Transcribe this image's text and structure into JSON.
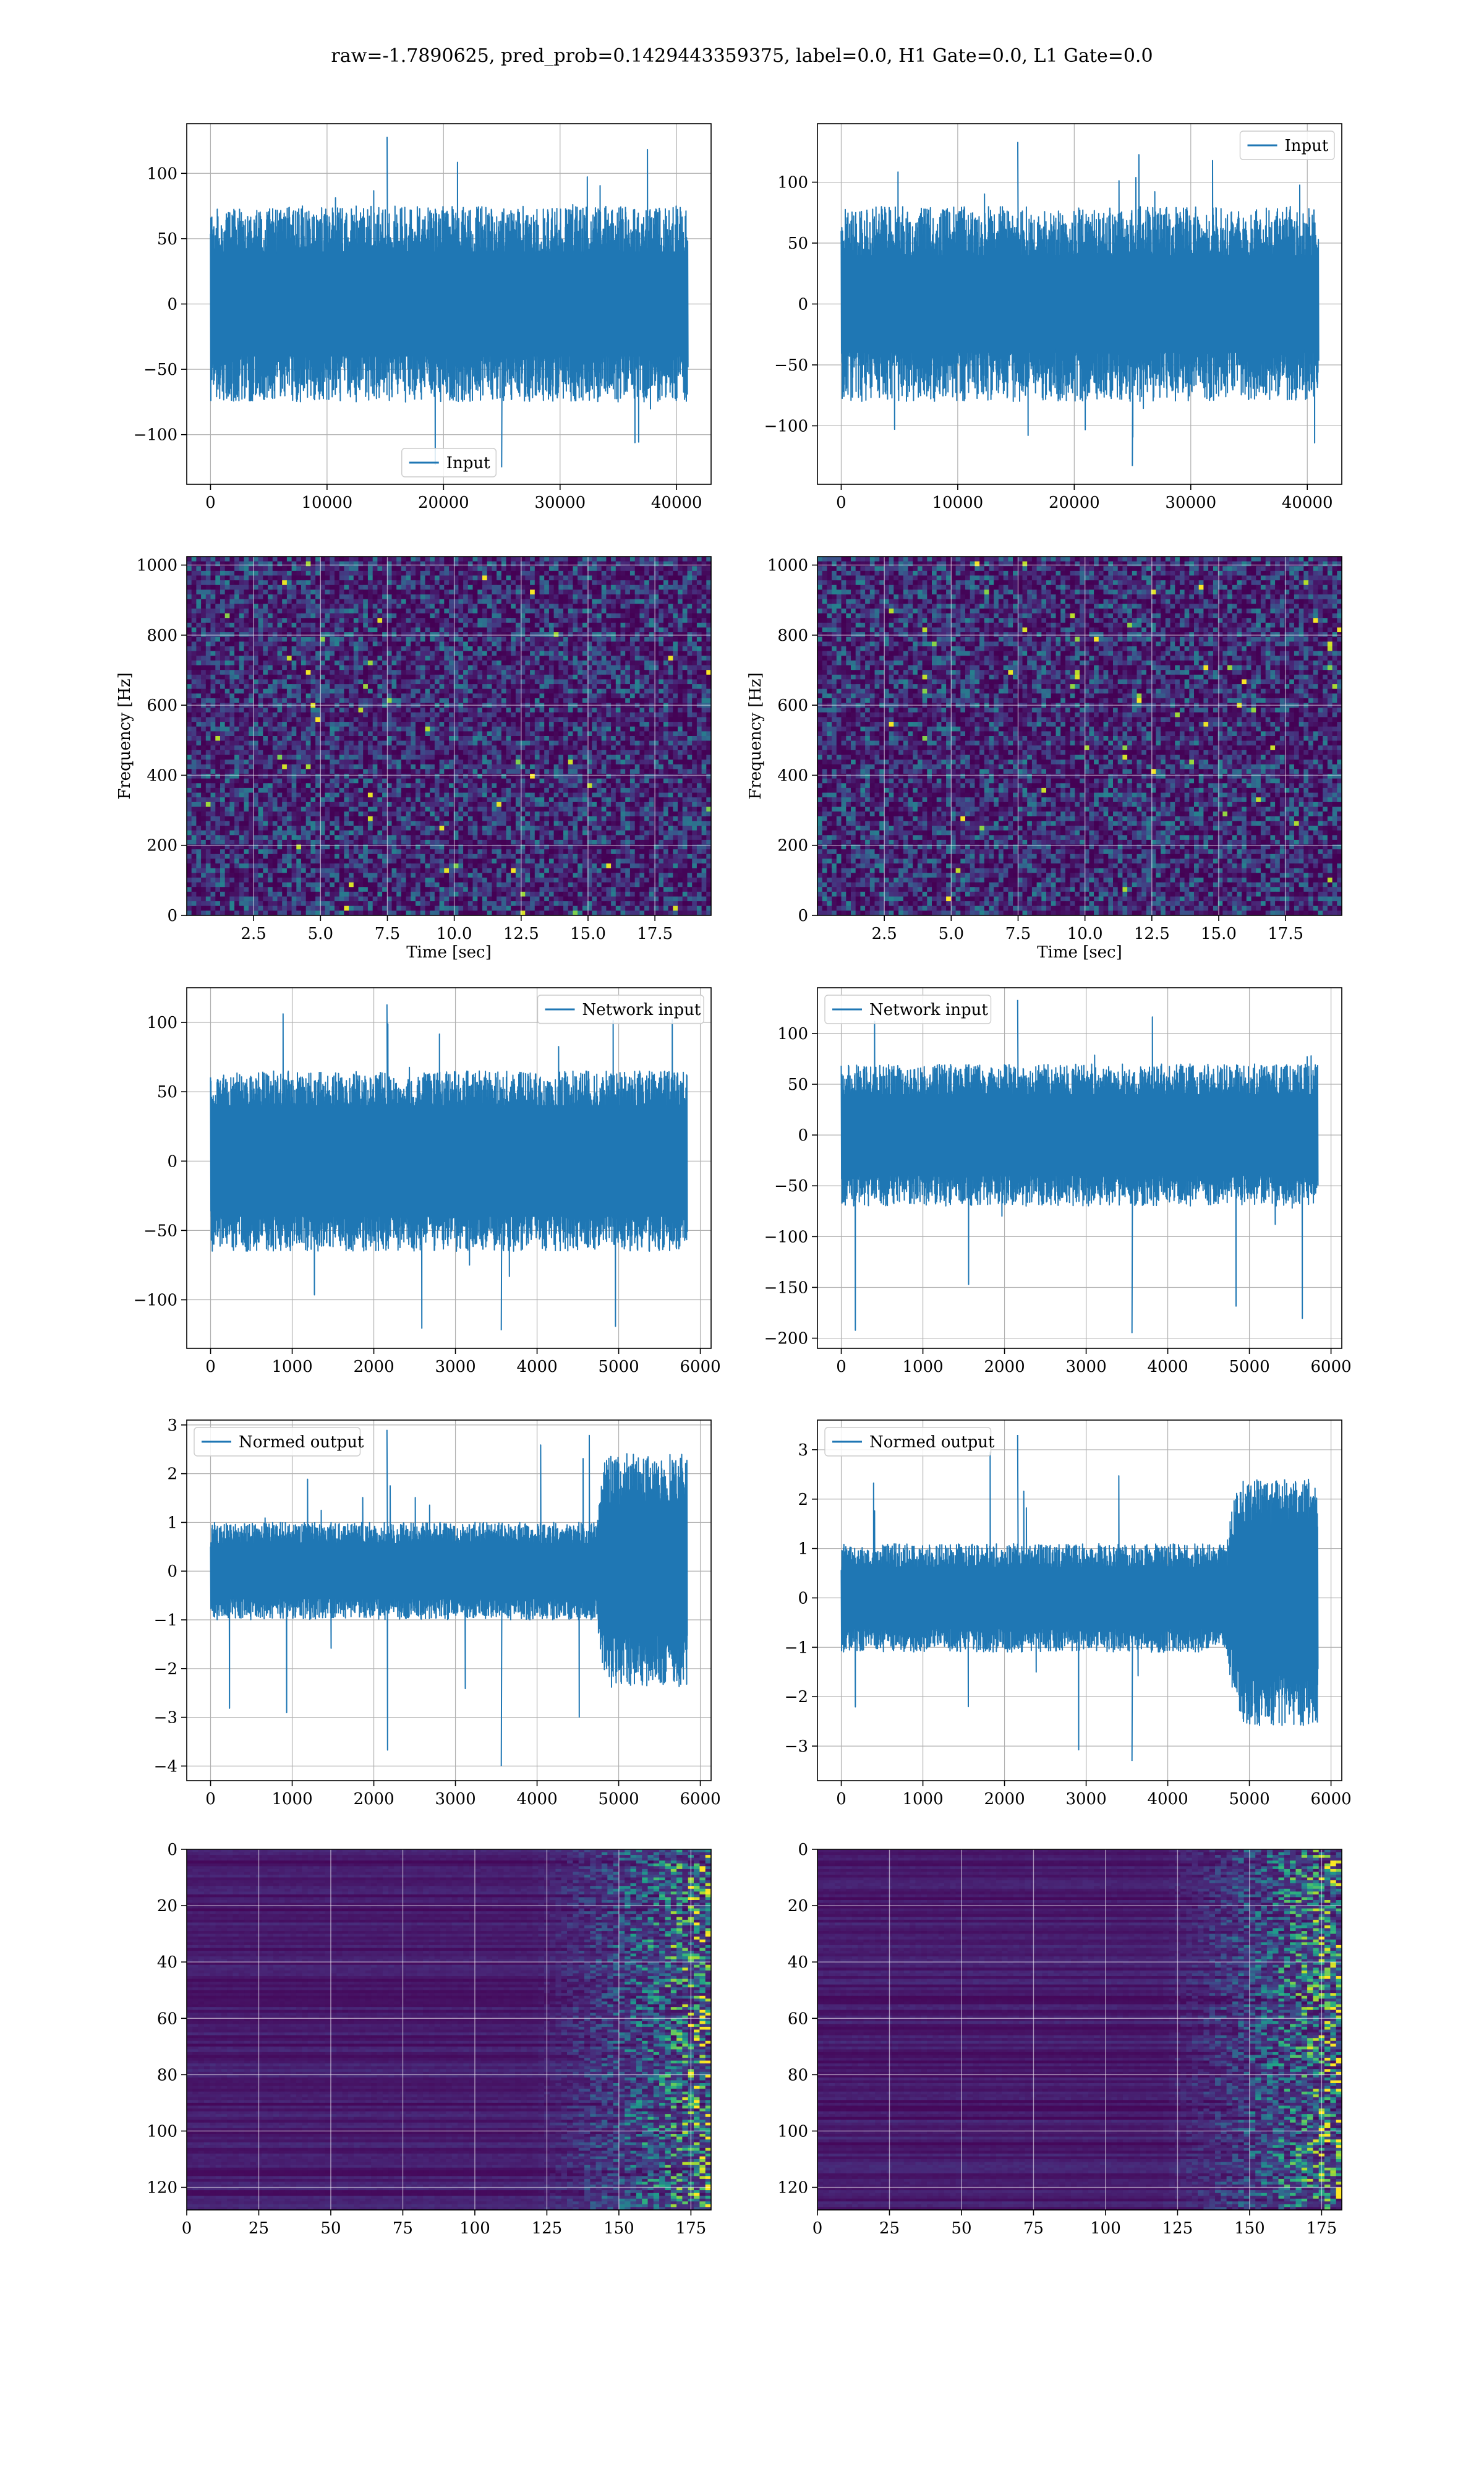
{
  "figure": {
    "suptitle": "raw=-1.7890625, pred_prob=0.1429443359375, label=0.0, H1 Gate=0.0, L1 Gate=0.0",
    "colors": {
      "line": "#1f77b4",
      "grid": "#b0b0b0",
      "axes": "#000000"
    }
  },
  "chart_data": [
    {
      "id": "input-h1",
      "type": "line",
      "row": 0,
      "col": 0,
      "xlim": [
        -2040,
        42960
      ],
      "ylim": [
        -138,
        138
      ],
      "xticks": [
        "0",
        "10000",
        "20000",
        "30000",
        "40000"
      ],
      "xtick_values": [
        0,
        10000,
        20000,
        30000,
        40000
      ],
      "yticks": [
        "−100",
        "−50",
        "0",
        "50",
        "100"
      ],
      "ytick_values": [
        -100,
        -50,
        0,
        50,
        100
      ],
      "grid": true,
      "legend": "lower center",
      "series": [
        {
          "name": "Input",
          "n": 40960,
          "envelope": {
            "p_lo": -75,
            "p_hi": 75,
            "core_lo": -35,
            "core_hi": 35,
            "max": 128,
            "min": -125
          }
        }
      ]
    },
    {
      "id": "input-l1",
      "type": "line",
      "row": 0,
      "col": 1,
      "xlim": [
        -2040,
        42960
      ],
      "ylim": [
        -148,
        148
      ],
      "xticks": [
        "0",
        "10000",
        "20000",
        "30000",
        "40000"
      ],
      "xtick_values": [
        0,
        10000,
        20000,
        30000,
        40000
      ],
      "yticks": [
        "−100",
        "−50",
        "0",
        "50",
        "100"
      ],
      "ytick_values": [
        -100,
        -50,
        0,
        50,
        100
      ],
      "grid": true,
      "legend": "upper right",
      "series": [
        {
          "name": "Input",
          "n": 40960,
          "envelope": {
            "p_lo": -80,
            "p_hi": 80,
            "core_lo": -35,
            "core_hi": 35,
            "max": 133,
            "min": -133
          }
        }
      ]
    },
    {
      "id": "spectrogram-h1",
      "type": "heatmap",
      "row": 1,
      "col": 0,
      "xlim": [
        0,
        19.6
      ],
      "ylim": [
        0,
        1024
      ],
      "xticks": [
        "2.5",
        "5.0",
        "7.5",
        "10.0",
        "12.5",
        "15.0",
        "17.5"
      ],
      "xtick_values": [
        2.5,
        5,
        7.5,
        10,
        12.5,
        15,
        17.5
      ],
      "yticks": [
        "0",
        "200",
        "400",
        "600",
        "800",
        "1000"
      ],
      "ytick_values": [
        0,
        200,
        400,
        600,
        800,
        1000
      ],
      "xlabel": "Time [sec]",
      "ylabel": "Frequency [Hz]",
      "grid": true,
      "colormap": "viridis",
      "content": "noise"
    },
    {
      "id": "spectrogram-l1",
      "type": "heatmap",
      "row": 1,
      "col": 1,
      "xlim": [
        0,
        19.6
      ],
      "ylim": [
        0,
        1024
      ],
      "xticks": [
        "2.5",
        "5.0",
        "7.5",
        "10.0",
        "12.5",
        "15.0",
        "17.5"
      ],
      "xtick_values": [
        2.5,
        5,
        7.5,
        10,
        12.5,
        15,
        17.5
      ],
      "yticks": [
        "0",
        "200",
        "400",
        "600",
        "800",
        "1000"
      ],
      "ytick_values": [
        0,
        200,
        400,
        600,
        800,
        1000
      ],
      "xlabel": "Time [sec]",
      "ylabel": "Frequency [Hz]",
      "grid": true,
      "colormap": "viridis",
      "content": "noise"
    },
    {
      "id": "network-input-h1",
      "type": "line",
      "row": 2,
      "col": 0,
      "xlim": [
        -292,
        6132
      ],
      "ylim": [
        -135,
        125
      ],
      "xticks": [
        "0",
        "1000",
        "2000",
        "3000",
        "4000",
        "5000",
        "6000"
      ],
      "xtick_values": [
        0,
        1000,
        2000,
        3000,
        4000,
        5000,
        6000
      ],
      "yticks": [
        "−100",
        "−50",
        "0",
        "50",
        "100"
      ],
      "ytick_values": [
        -100,
        -50,
        0,
        50,
        100
      ],
      "grid": true,
      "legend": "upper right",
      "series": [
        {
          "name": "Network input",
          "n": 5840,
          "envelope": {
            "p_lo": -65,
            "p_hi": 65,
            "core_lo": -35,
            "core_hi": 35,
            "max": 113,
            "min": -122
          }
        }
      ]
    },
    {
      "id": "network-input-l1",
      "type": "line",
      "row": 2,
      "col": 1,
      "xlim": [
        -292,
        6132
      ],
      "ylim": [
        -210,
        145
      ],
      "xticks": [
        "0",
        "1000",
        "2000",
        "3000",
        "4000",
        "5000",
        "6000"
      ],
      "xtick_values": [
        0,
        1000,
        2000,
        3000,
        4000,
        5000,
        6000
      ],
      "yticks": [
        "−200",
        "−150",
        "−100",
        "−50",
        "0",
        "50",
        "100"
      ],
      "ytick_values": [
        -200,
        -150,
        -100,
        -50,
        0,
        50,
        100
      ],
      "grid": true,
      "legend": "upper left",
      "series": [
        {
          "name": "Network input",
          "n": 5840,
          "envelope": {
            "p_lo": -70,
            "p_hi": 70,
            "core_lo": -35,
            "core_hi": 35,
            "max": 133,
            "min": -195
          }
        }
      ]
    },
    {
      "id": "normed-output-h1",
      "type": "line",
      "row": 3,
      "col": 0,
      "xlim": [
        -292,
        6132
      ],
      "ylim": [
        -4.3,
        3.1
      ],
      "xticks": [
        "0",
        "1000",
        "2000",
        "3000",
        "4000",
        "5000",
        "6000"
      ],
      "xtick_values": [
        0,
        1000,
        2000,
        3000,
        4000,
        5000,
        6000
      ],
      "yticks": [
        "−4",
        "−3",
        "−2",
        "−1",
        "0",
        "1",
        "2",
        "3"
      ],
      "ytick_values": [
        -4,
        -3,
        -2,
        -1,
        0,
        1,
        2,
        3
      ],
      "grid": true,
      "legend": "upper left",
      "series": [
        {
          "name": "Normed output",
          "n": 5840,
          "envelope": {
            "p_lo": -1.0,
            "p_hi": 1.0,
            "core_lo": -0.5,
            "core_hi": 0.5,
            "max": 2.9,
            "min": -4.0,
            "burst_start": 4720,
            "burst_hi": 2.4,
            "burst_lo": -2.4
          }
        }
      ]
    },
    {
      "id": "normed-output-l1",
      "type": "line",
      "row": 3,
      "col": 1,
      "xlim": [
        -292,
        6132
      ],
      "ylim": [
        -3.7,
        3.6
      ],
      "xticks": [
        "0",
        "1000",
        "2000",
        "3000",
        "4000",
        "5000",
        "6000"
      ],
      "xtick_values": [
        0,
        1000,
        2000,
        3000,
        4000,
        5000,
        6000
      ],
      "yticks": [
        "−3",
        "−2",
        "−1",
        "0",
        "1",
        "2",
        "3"
      ],
      "ytick_values": [
        -3,
        -2,
        -1,
        0,
        1,
        2,
        3
      ],
      "grid": true,
      "legend": "upper left",
      "series": [
        {
          "name": "Normed output",
          "n": 5840,
          "envelope": {
            "p_lo": -1.1,
            "p_hi": 1.1,
            "core_lo": -0.55,
            "core_hi": 0.55,
            "max": 3.3,
            "min": -3.3,
            "burst_start": 4720,
            "burst_hi": 2.4,
            "burst_lo": -2.6
          }
        }
      ]
    },
    {
      "id": "feature-map-h1",
      "type": "heatmap",
      "row": 4,
      "col": 0,
      "xlim": [
        0,
        182
      ],
      "ylim": [
        128,
        0
      ],
      "xticks": [
        "0",
        "25",
        "50",
        "75",
        "100",
        "125",
        "150",
        "175"
      ],
      "xtick_values": [
        0,
        25,
        50,
        75,
        100,
        125,
        150,
        175
      ],
      "yticks": [
        "0",
        "20",
        "40",
        "60",
        "80",
        "100",
        "120"
      ],
      "ytick_values": [
        0,
        20,
        40,
        60,
        80,
        100,
        120
      ],
      "grid": true,
      "colormap": "viridis",
      "content": "activations-right"
    },
    {
      "id": "feature-map-l1",
      "type": "heatmap",
      "row": 4,
      "col": 1,
      "xlim": [
        0,
        182
      ],
      "ylim": [
        128,
        0
      ],
      "xticks": [
        "0",
        "25",
        "50",
        "75",
        "100",
        "125",
        "150",
        "175"
      ],
      "xtick_values": [
        0,
        25,
        50,
        75,
        100,
        125,
        150,
        175
      ],
      "yticks": [
        "0",
        "20",
        "40",
        "60",
        "80",
        "100",
        "120"
      ],
      "ytick_values": [
        0,
        20,
        40,
        60,
        80,
        100,
        120
      ],
      "grid": true,
      "colormap": "viridis",
      "content": "activations-right"
    }
  ]
}
